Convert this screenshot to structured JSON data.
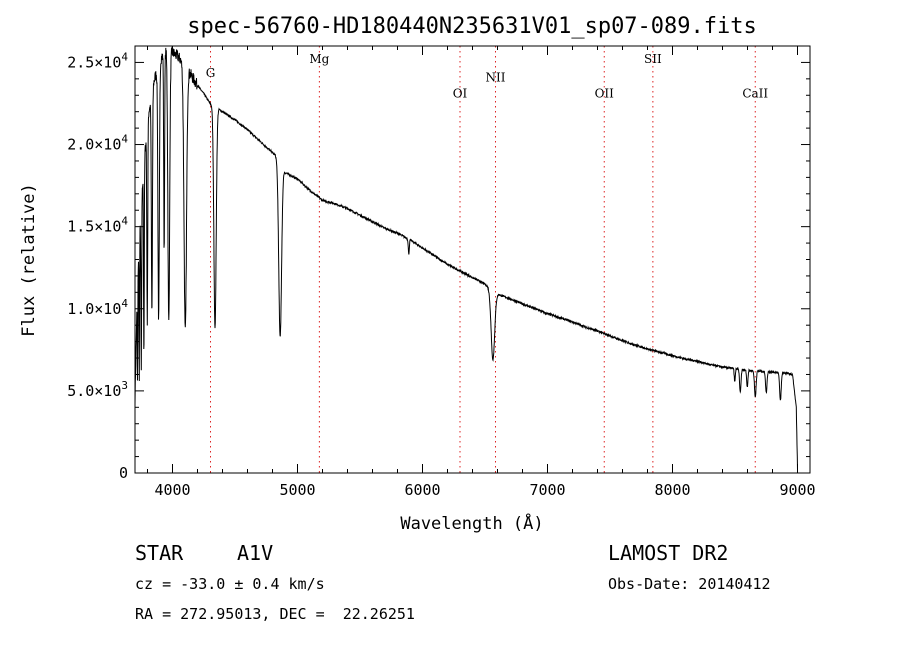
{
  "chart_data": {
    "type": "line",
    "title": "spec-56760-HD180440N235631V01_sp07-089.fits",
    "xlabel": "Wavelength (Å)",
    "ylabel": "Flux (relative)",
    "xlim": [
      3700,
      9100
    ],
    "ylim": [
      0,
      26000
    ],
    "grid": false,
    "x_ticks": [
      {
        "value": 4000,
        "label": "4000"
      },
      {
        "value": 5000,
        "label": "5000"
      },
      {
        "value": 6000,
        "label": "6000"
      },
      {
        "value": 7000,
        "label": "7000"
      },
      {
        "value": 8000,
        "label": "8000"
      },
      {
        "value": 9000,
        "label": "9000"
      }
    ],
    "y_ticks": [
      {
        "value": 0,
        "mant": "0",
        "exp": ""
      },
      {
        "value": 5000,
        "mant": "5.0×10",
        "exp": "3"
      },
      {
        "value": 10000,
        "mant": "1.0×10",
        "exp": "4"
      },
      {
        "value": 15000,
        "mant": "1.5×10",
        "exp": "4"
      },
      {
        "value": 20000,
        "mant": "2.0×10",
        "exp": "4"
      },
      {
        "value": 25000,
        "mant": "2.5×10",
        "exp": "4"
      }
    ],
    "lines": [
      {
        "name": "G",
        "x": 4304,
        "label_y": 24100
      },
      {
        "name": "Mg",
        "x": 5175,
        "label_y": 24950
      },
      {
        "name": "OI",
        "x": 6300,
        "label_y": 22850
      },
      {
        "name": "NII",
        "x": 6584,
        "label_y": 23850
      },
      {
        "name": "OII",
        "x": 7454,
        "label_y": 22850
      },
      {
        "name": "SII",
        "x": 7843,
        "label_y": 24950
      },
      {
        "name": "CaII",
        "x": 8662,
        "label_y": 22850
      }
    ],
    "series": [
      {
        "continuum": [
          [
            3700,
            4500
          ],
          [
            3720,
            12000
          ],
          [
            3760,
            17500
          ],
          [
            3800,
            21500
          ],
          [
            3850,
            23800
          ],
          [
            3900,
            25200
          ],
          [
            3950,
            25700
          ],
          [
            4000,
            25600
          ],
          [
            4050,
            25300
          ],
          [
            4100,
            24800
          ],
          [
            4150,
            24200
          ],
          [
            4200,
            23600
          ],
          [
            4250,
            23100
          ],
          [
            4300,
            22500
          ],
          [
            4400,
            22000
          ],
          [
            4500,
            21500
          ],
          [
            4600,
            20900
          ],
          [
            4700,
            20200
          ],
          [
            4800,
            19500
          ],
          [
            4860,
            19100
          ],
          [
            4900,
            18300
          ],
          [
            5000,
            17900
          ],
          [
            5100,
            17200
          ],
          [
            5200,
            16600
          ],
          [
            5300,
            16400
          ],
          [
            5400,
            16100
          ],
          [
            5500,
            15700
          ],
          [
            5600,
            15300
          ],
          [
            5700,
            14900
          ],
          [
            5800,
            14600
          ],
          [
            5900,
            14200
          ],
          [
            6000,
            13700
          ],
          [
            6100,
            13200
          ],
          [
            6200,
            12700
          ],
          [
            6300,
            12300
          ],
          [
            6400,
            11900
          ],
          [
            6500,
            11500
          ],
          [
            6550,
            11200
          ],
          [
            6600,
            10900
          ],
          [
            6700,
            10600
          ],
          [
            6800,
            10300
          ],
          [
            6900,
            10000
          ],
          [
            7000,
            9700
          ],
          [
            7100,
            9450
          ],
          [
            7200,
            9200
          ],
          [
            7300,
            8900
          ],
          [
            7400,
            8650
          ],
          [
            7500,
            8350
          ],
          [
            7600,
            8050
          ],
          [
            7700,
            7800
          ],
          [
            7800,
            7550
          ],
          [
            7900,
            7350
          ],
          [
            8000,
            7150
          ],
          [
            8100,
            6950
          ],
          [
            8200,
            6800
          ],
          [
            8300,
            6600
          ],
          [
            8400,
            6450
          ],
          [
            8500,
            6350
          ],
          [
            8600,
            6250
          ],
          [
            8700,
            6200
          ],
          [
            8800,
            6150
          ],
          [
            8900,
            6100
          ],
          [
            8960,
            6000
          ],
          [
            8990,
            4000
          ],
          [
            9000,
            200
          ]
        ],
        "absorption": [
          [
            3720,
            3,
            6500
          ],
          [
            3734,
            3,
            8000
          ],
          [
            3750,
            4,
            10000
          ],
          [
            3771,
            4,
            11500
          ],
          [
            3798,
            5,
            12000
          ],
          [
            3835,
            6,
            13500
          ],
          [
            3889,
            8,
            15500
          ],
          [
            3933,
            5,
            12000
          ],
          [
            3970,
            10,
            16500
          ],
          [
            4102,
            14,
            16200
          ],
          [
            4340,
            13,
            13500
          ],
          [
            4861,
            16,
            10800
          ],
          [
            5890,
            6,
            900
          ],
          [
            6563,
            20,
            4200
          ],
          [
            8498,
            6,
            800
          ],
          [
            8542,
            8,
            1400
          ],
          [
            8598,
            7,
            1000
          ],
          [
            8662,
            9,
            1600
          ],
          [
            8750,
            8,
            1300
          ],
          [
            8863,
            9,
            1700
          ]
        ],
        "noise": 120
      }
    ]
  },
  "info": {
    "object": "STAR",
    "subclass": "A1V",
    "survey": "LAMOST DR2",
    "cz": "cz = -33.0 ± 0.4 km/s",
    "obs_date": "Obs-Date: 20140412",
    "coords": "RA = 272.95013, DEC =  22.26251"
  },
  "colors": {
    "axis": "#000000",
    "spectrum": "#000000",
    "line_marker": "#dd2222"
  }
}
